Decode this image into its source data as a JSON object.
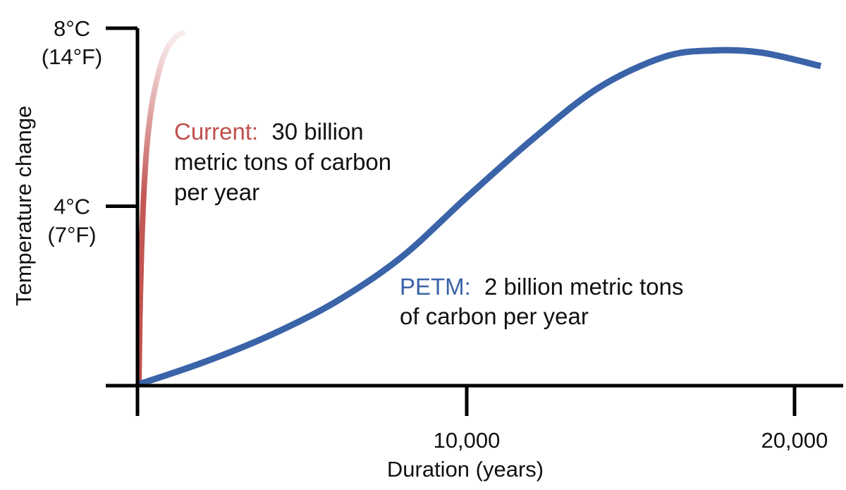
{
  "chart_data": {
    "type": "line",
    "title": "",
    "xlabel": "Duration (years)",
    "ylabel": "Temperature change",
    "xlim": [
      0,
      21000
    ],
    "ylim": [
      0,
      8
    ],
    "grid": false,
    "x_ticks": [
      {
        "value": 10000,
        "label": "10,000"
      },
      {
        "value": 20000,
        "label": "20,000"
      }
    ],
    "y_ticks": [
      {
        "value": 4,
        "label_c": "4°C",
        "label_f": "(7°F)"
      },
      {
        "value": 8,
        "label_c": "8°C",
        "label_f": "(14°F)"
      }
    ],
    "series": [
      {
        "name": "Current",
        "color": "#c0504d",
        "fade_to": "#f5dcdc",
        "x": [
          0,
          30,
          80,
          150,
          250,
          400,
          600,
          800,
          1000,
          1200,
          1400
        ],
        "y": [
          0,
          1.5,
          3.0,
          4.3,
          5.4,
          6.3,
          7.0,
          7.45,
          7.7,
          7.85,
          7.9
        ]
      },
      {
        "name": "PETM",
        "color": "#3a63a8",
        "x": [
          0,
          2000,
          4000,
          6000,
          8000,
          10000,
          12000,
          14000,
          16000,
          17500,
          19000,
          20800
        ],
        "y": [
          0,
          0.5,
          1.1,
          1.85,
          2.85,
          4.2,
          5.5,
          6.65,
          7.35,
          7.5,
          7.45,
          7.15
        ]
      }
    ]
  },
  "annotations": {
    "current": {
      "label": "Current:",
      "lines": [
        "30 billion",
        "metric tons of carbon",
        "per year"
      ]
    },
    "petm": {
      "label": "PETM:",
      "lines": [
        "2 billion metric tons",
        "of carbon per year"
      ]
    }
  },
  "colors": {
    "axis": "#000000",
    "current": "#c0504d",
    "petm": "#3a63a8",
    "text": "#111111"
  }
}
